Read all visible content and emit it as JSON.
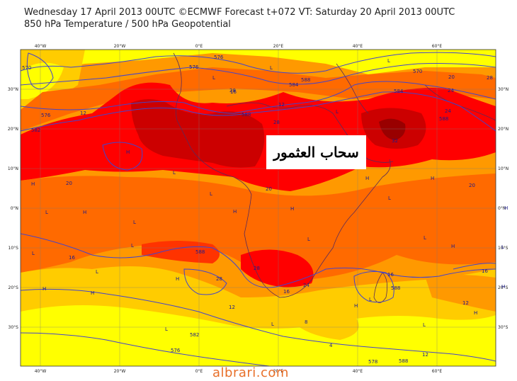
{
  "header": {
    "line1": "Wednesday 17 April 2013 00UTC ©ECMWF Forecast t+072 VT: Saturday 20 April 2013 00UTC",
    "line2": "850 hPa Temperature / 500 hPa Geopotential"
  },
  "axes": {
    "lon_labels": [
      "40°W",
      "20°W",
      "0°E",
      "20°E",
      "40°E",
      "60°E"
    ],
    "lat_labels": [
      "30°N",
      "20°N",
      "10°N",
      "0°N",
      "10°S",
      "20°S",
      "30°S"
    ]
  },
  "contour_labels": [
    "576",
    "576",
    "576",
    "584",
    "588",
    "588",
    "570",
    "570",
    "582",
    "584",
    "588",
    "588",
    "582",
    "576",
    "578",
    "588",
    "588"
  ],
  "temperature_labels": [
    "12",
    "16",
    "20",
    "20",
    "20",
    "24",
    "24",
    "28",
    "28",
    "28",
    "16",
    "12",
    "4",
    "8",
    "12",
    "12",
    "16",
    "16",
    "12",
    "16",
    "20",
    "24",
    "28",
    "28",
    "32"
  ],
  "annotation": {
    "text": "سحاب العثمور"
  },
  "watermark": "albrari.com",
  "colors": {
    "hot": "#ff0000",
    "very_hot": "#cc0000",
    "warm": "#ff6a00",
    "mild": "#ff9900",
    "cool": "#ffcc00",
    "cold": "#ffff00",
    "contour": "#4444cc",
    "watermark": "#e8702a"
  }
}
